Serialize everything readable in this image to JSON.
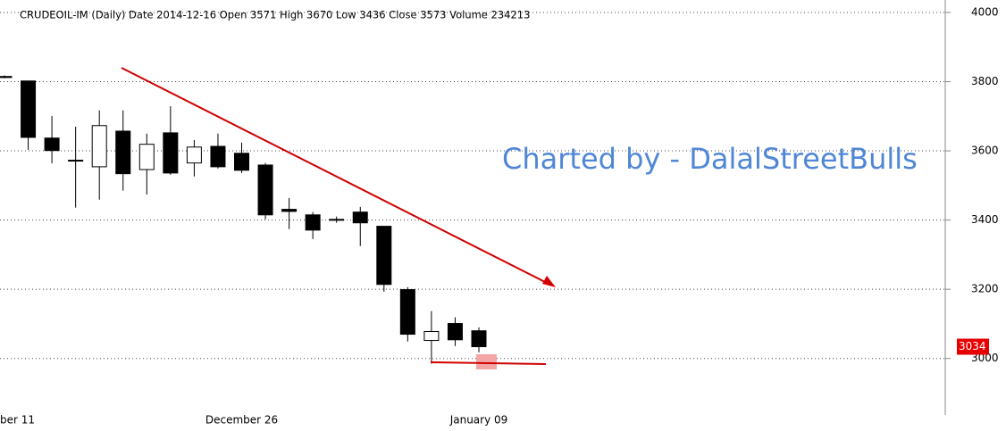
{
  "chart_data": {
    "type": "candlestick",
    "title": "CRUDEOIL-IM  (Daily)   Date  2014-12-16  Open  3571 High 3670 Low 3436 Close 3573  Volume 234213",
    "watermark": "Charted by - DalalStreetBulls",
    "categories": [
      "ber 11",
      null,
      null,
      null,
      null,
      null,
      null,
      null,
      null,
      null,
      "December 26",
      null,
      null,
      null,
      null,
      null,
      null,
      null,
      null,
      null,
      "January 09"
    ],
    "open": [
      3815,
      3802,
      3637,
      3571,
      3554,
      3657,
      3546,
      3652,
      3565,
      3613,
      3593,
      3559,
      3431,
      3415,
      3402,
      3423,
      3382,
      3199,
      3052,
      3101,
      3080
    ],
    "high": [
      3818,
      3802,
      3701,
      3670,
      3717,
      3717,
      3650,
      3729,
      3631,
      3650,
      3624,
      3565,
      3464,
      3423,
      3410,
      3438,
      3382,
      3206,
      3137,
      3119,
      3090
    ],
    "low": [
      3810,
      3603,
      3564,
      3436,
      3459,
      3485,
      3474,
      3531,
      3526,
      3549,
      3536,
      3402,
      3374,
      3345,
      3392,
      3325,
      3193,
      3049,
      2985,
      3036,
      3018
    ],
    "close": [
      3812,
      3639,
      3601,
      3573,
      3673,
      3534,
      3619,
      3536,
      3611,
      3554,
      3544,
      3415,
      3425,
      3371,
      3400,
      3392,
      3214,
      3070,
      3078,
      3054,
      3034
    ],
    "up_color": "#ffffff",
    "down_color": "#000000",
    "last_price": 3034,
    "last_price_color": "#e60000",
    "ylim": [
      2860,
      4036
    ],
    "yticks": [
      3000,
      3200,
      3400,
      3600,
      3800,
      4000
    ],
    "grid": true
  }
}
